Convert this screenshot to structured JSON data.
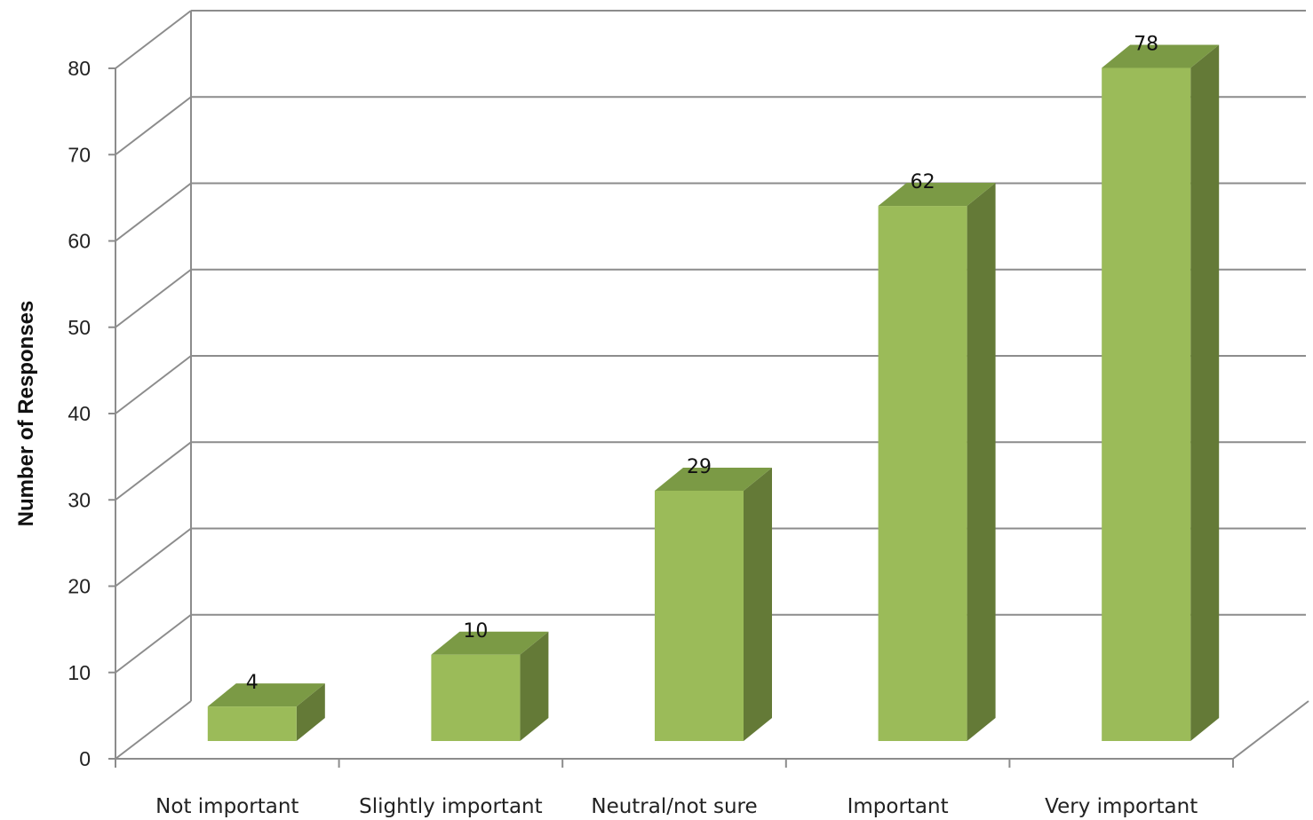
{
  "chart_data": {
    "type": "bar",
    "three_d": true,
    "categories": [
      "Not important",
      "Slightly important",
      "Neutral/not sure",
      "Important",
      "Very important"
    ],
    "values": [
      4,
      10,
      29,
      62,
      78
    ],
    "data_labels": [
      "4",
      "10",
      "29",
      "62",
      "78"
    ],
    "ylabel": "Number of Responses",
    "ylim": [
      0,
      80
    ],
    "yticks": [
      0,
      10,
      20,
      30,
      40,
      50,
      60,
      70,
      80
    ],
    "ytick_labels": [
      "0",
      "10",
      "20",
      "30",
      "40",
      "50",
      "60",
      "70",
      "80"
    ],
    "grid": true,
    "legend": "none",
    "colors": {
      "bar_front": "#9bbb59",
      "bar_top": "#7b9a45",
      "bar_side": "#647a37",
      "grid": "#8c8c8c",
      "axis": "#8c8c8c"
    }
  }
}
